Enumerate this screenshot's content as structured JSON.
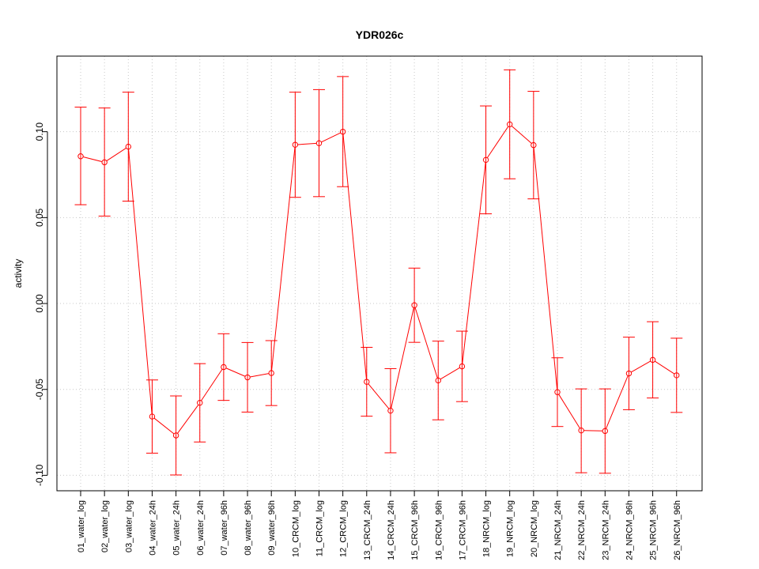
{
  "chart_data": {
    "type": "line",
    "title": "YDR026c",
    "xlabel": "",
    "ylabel": "activity",
    "ylim": [
      -0.109,
      0.144
    ],
    "yticks": [
      "0.10",
      "0.05",
      "0.00",
      "-0.05",
      "-0.10"
    ],
    "ytick_values": [
      0.1,
      0.05,
      0.0,
      -0.05,
      -0.1
    ],
    "grid": true,
    "series_color": "#ff0000",
    "grid_color": "#c8c8c8",
    "categories": [
      "01_water_log",
      "02_water_log",
      "03_water_log",
      "04_water_24h",
      "05_water_24h",
      "06_water_24h",
      "07_water_96h",
      "08_water_96h",
      "09_water_96h",
      "10_CRCM_log",
      "11_CRCM_log",
      "12_CRCM_log",
      "13_CRCM_24h",
      "14_CRCM_24h",
      "15_CRCM_96h",
      "16_CRCM_96h",
      "17_CRCM_96h",
      "18_NRCM_log",
      "19_NRCM_log",
      "20_NRCM_log",
      "21_NRCM_24h",
      "22_NRCM_24h",
      "23_NRCM_24h",
      "24_NRCM_96h",
      "25_NRCM_96h",
      "26_NRCM_96h"
    ],
    "values": [
      0.0857,
      0.0822,
      0.0913,
      -0.0658,
      -0.0768,
      -0.0578,
      -0.037,
      -0.043,
      -0.0405,
      0.0924,
      0.0933,
      0.1,
      -0.0456,
      -0.0624,
      -0.001,
      -0.0448,
      -0.0366,
      0.0836,
      0.1043,
      0.0922,
      -0.0516,
      -0.0739,
      -0.0742,
      -0.0407,
      -0.0328,
      -0.0418
    ],
    "upper": [
      0.1143,
      0.1138,
      0.123,
      -0.0445,
      -0.0538,
      -0.035,
      -0.0176,
      -0.0227,
      -0.0216,
      0.123,
      0.1245,
      0.1321,
      -0.0255,
      -0.0379,
      0.0206,
      -0.0219,
      -0.0161,
      0.115,
      0.136,
      0.1235,
      -0.0316,
      -0.0497,
      -0.0497,
      -0.0196,
      -0.0106,
      -0.0202
    ],
    "lower": [
      0.0575,
      0.0509,
      0.0596,
      -0.0871,
      -0.0998,
      -0.0806,
      -0.0564,
      -0.0632,
      -0.0594,
      0.0618,
      0.0622,
      0.068,
      -0.0656,
      -0.0869,
      -0.0226,
      -0.0677,
      -0.0571,
      0.0522,
      0.0726,
      0.0609,
      -0.0716,
      -0.0985,
      -0.0988,
      -0.0618,
      -0.055,
      -0.0634
    ]
  }
}
